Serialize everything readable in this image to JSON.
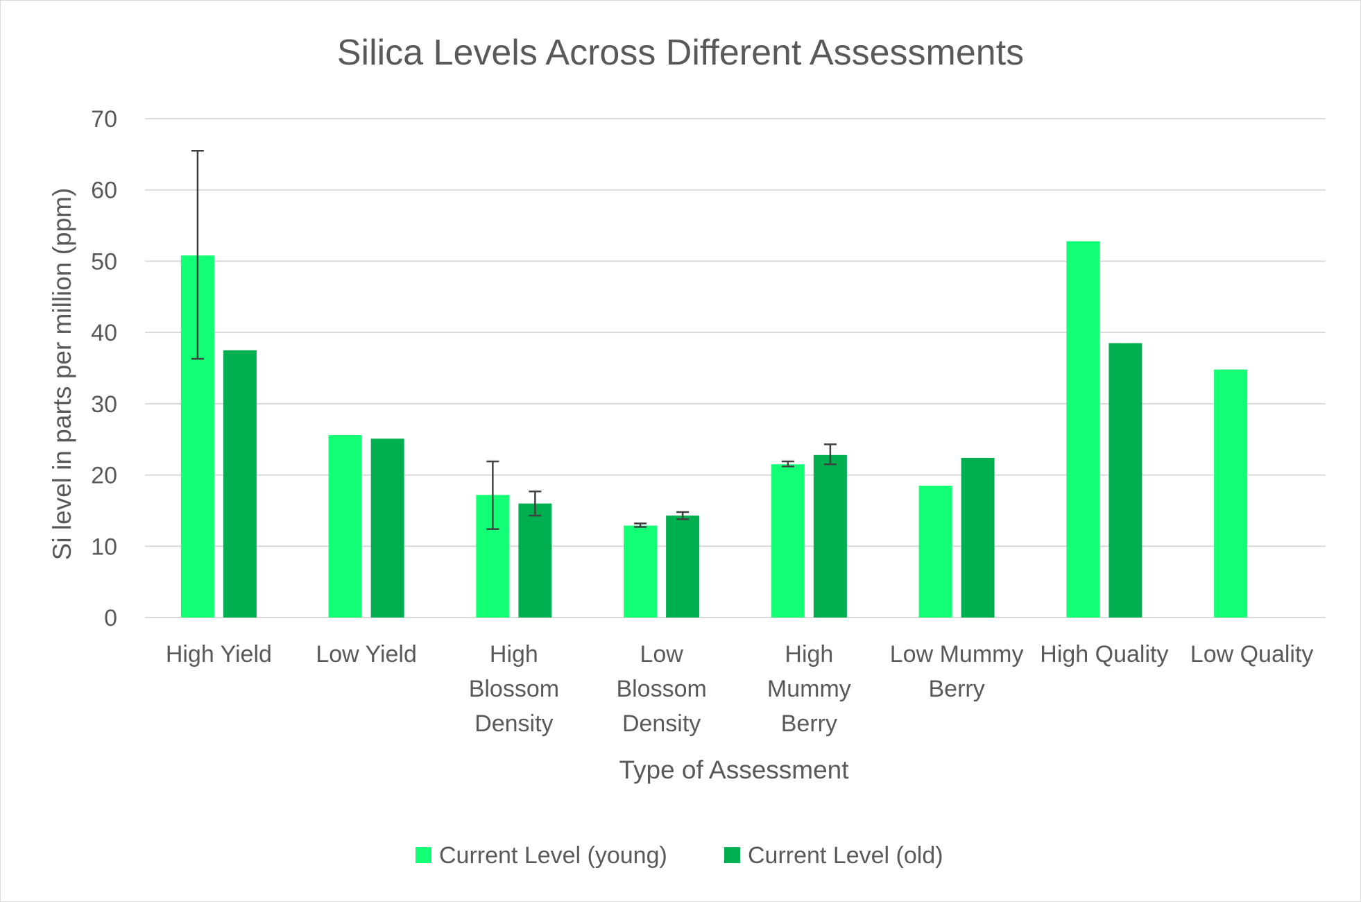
{
  "chart_data": {
    "type": "bar",
    "title": "Silica Levels Across Different Assessments",
    "xlabel": "Type of Assessment",
    "ylabel": "Si level in parts per million (ppm)",
    "ylim": [
      0,
      70
    ],
    "yticks": [
      0,
      10,
      20,
      30,
      40,
      50,
      60,
      70
    ],
    "grid": true,
    "legend": "bottom",
    "categories": [
      [
        "High Yield"
      ],
      [
        "Low Yield"
      ],
      [
        "High",
        "Blossom",
        "Density"
      ],
      [
        "Low",
        "Blossom",
        "Density"
      ],
      [
        "High",
        "Mummy",
        "Berry"
      ],
      [
        "Low Mummy",
        "Berry"
      ],
      [
        "High Quality"
      ],
      [
        "Low Quality"
      ]
    ],
    "series": [
      {
        "name": "Current Level (young)",
        "color": "#12ff75",
        "values": [
          50.8,
          25.6,
          17.2,
          12.9,
          21.5,
          18.5,
          52.8,
          34.8
        ],
        "error_low": [
          36.3,
          null,
          12.4,
          12.7,
          21.2,
          null,
          null,
          null
        ],
        "error_high": [
          65.5,
          null,
          21.9,
          13.2,
          21.9,
          null,
          null,
          null
        ]
      },
      {
        "name": "Current Level (old)",
        "color": "#00b050",
        "values": [
          37.5,
          25.1,
          16.0,
          14.3,
          22.8,
          22.4,
          38.5,
          null
        ],
        "error_low": [
          null,
          null,
          14.3,
          13.8,
          21.5,
          null,
          null,
          null
        ],
        "error_high": [
          null,
          null,
          17.7,
          14.8,
          24.3,
          null,
          null,
          null
        ]
      }
    ]
  }
}
